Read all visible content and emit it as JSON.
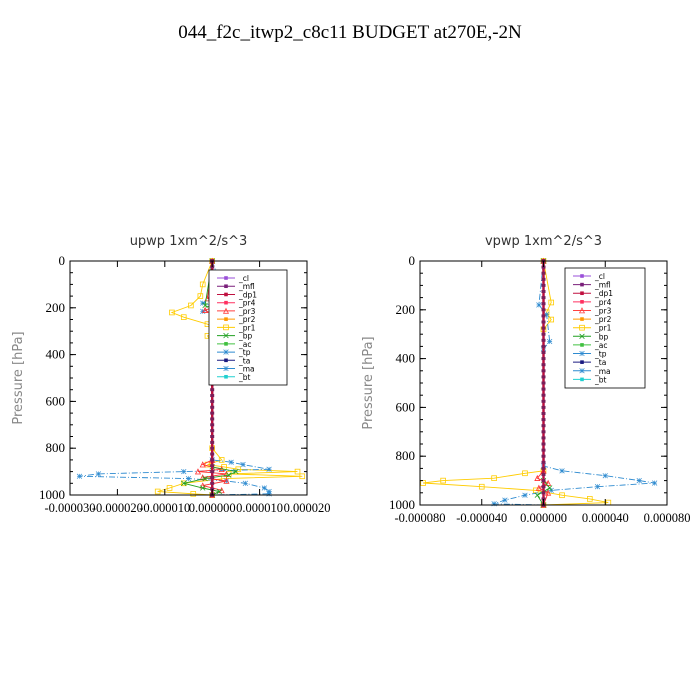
{
  "page_title": "044_f2c_itwp2_c8c11  BUDGET at270E,-2N",
  "chart_data": [
    {
      "type": "line",
      "title": "upwp  1xm^2/s^3",
      "ylabel": "Pressure [hPa]",
      "xlim": [
        -3e-05,
        2e-05
      ],
      "ylim": [
        1000,
        0
      ],
      "x_tick_labels": [
        "-0.000030",
        "-0.000020",
        "-0.000010",
        "0.000000",
        "0.000010",
        "0.000020"
      ],
      "x_ticks": [
        -3e-05,
        -2e-05,
        -1e-05,
        0,
        1e-05,
        2e-05
      ],
      "y_ticks": [
        0,
        200,
        400,
        600,
        800,
        1000
      ],
      "y_tick_labels": [
        "0",
        "200",
        "400",
        "600",
        "800",
        "1000"
      ],
      "legend_position": "upper-right",
      "legend": [
        "_cl",
        "_mfl",
        "_dp1",
        "_pr4",
        "_pr3",
        "_pr2",
        "_pr1",
        "_bp",
        "_ac",
        "_tp",
        "_ta",
        "_ma",
        "_bt"
      ],
      "series": [
        {
          "name": "_pr1",
          "color": "#ffcc00",
          "points": [
            [
              0,
              0
            ],
            [
              -2e-06,
              100
            ],
            [
              -2.5e-06,
              150
            ],
            [
              -4.5e-06,
              190
            ],
            [
              -8.5e-06,
              220
            ],
            [
              -6e-06,
              240
            ],
            [
              -1e-06,
              270
            ],
            [
              2e-06,
              300
            ],
            [
              -1e-06,
              320
            ],
            [
              0,
              350
            ],
            [
              0,
              800
            ],
            [
              2e-06,
              850
            ],
            [
              -1e-06,
              870
            ],
            [
              2.5e-06,
              880
            ],
            [
              5.5e-06,
              890
            ],
            [
              1.8e-05,
              900
            ],
            [
              3.5e-06,
              910
            ],
            [
              1.9e-05,
              920
            ],
            [
              2.5e-06,
              930
            ],
            [
              -6e-06,
              950
            ],
            [
              -9e-06,
              970
            ],
            [
              -1.15e-05,
              985
            ],
            [
              -4e-06,
              995
            ],
            [
              0,
              1000
            ]
          ]
        },
        {
          "name": "_ma",
          "color": "#2e8bd0",
          "points": [
            [
              0,
              0
            ],
            [
              2.5e-06,
              140
            ],
            [
              -2e-06,
              180
            ],
            [
              1.5e-06,
              200
            ],
            [
              -2e-06,
              215
            ],
            [
              4.5e-06,
              230
            ],
            [
              0,
              260
            ],
            [
              0,
              850
            ],
            [
              4e-06,
              860
            ],
            [
              6.5e-06,
              870
            ],
            [
              1.2e-05,
              890
            ],
            [
              -6e-06,
              900
            ],
            [
              -2.4e-05,
              910
            ],
            [
              -2.8e-05,
              920
            ],
            [
              -5e-06,
              930
            ],
            [
              3e-06,
              940
            ],
            [
              7e-06,
              950
            ],
            [
              1.1e-05,
              970
            ],
            [
              1.2e-05,
              985
            ],
            [
              1.2e-05,
              995
            ],
            [
              0,
              1000
            ]
          ]
        },
        {
          "name": "_pr3",
          "color": "#ff3030",
          "points": [
            [
              0,
              0
            ],
            [
              -1e-06,
              160
            ],
            [
              1.5e-06,
              190
            ],
            [
              -1.5e-06,
              210
            ],
            [
              1e-06,
              240
            ],
            [
              0,
              260
            ],
            [
              0,
              850
            ],
            [
              -2e-06,
              870
            ],
            [
              2e-06,
              890
            ],
            [
              -3e-06,
              900
            ],
            [
              3e-06,
              910
            ],
            [
              -2e-06,
              925
            ],
            [
              3e-06,
              940
            ],
            [
              -2e-06,
              960
            ],
            [
              2e-06,
              980
            ],
            [
              0,
              1000
            ]
          ]
        },
        {
          "name": "_bp",
          "color": "#20a020",
          "points": [
            [
              0,
              0
            ],
            [
              -1.5e-06,
              190
            ],
            [
              1e-06,
              210
            ],
            [
              0,
              230
            ],
            [
              0,
              880
            ],
            [
              5e-06,
              900
            ],
            [
              3.5e-06,
              915
            ],
            [
              -1.5e-06,
              930
            ],
            [
              -6e-06,
              950
            ],
            [
              -2e-06,
              970
            ],
            [
              1.5e-06,
              985
            ],
            [
              0,
              1000
            ]
          ]
        },
        {
          "name": "_cl",
          "color": "#7a3fd0",
          "points": [
            [
              0,
              0
            ],
            [
              0,
              1000
            ]
          ]
        },
        {
          "name": "_mfl",
          "color": "#7a1f5a",
          "points": [
            [
              0,
              0
            ],
            [
              0,
              1000
            ]
          ]
        },
        {
          "name": "_dp1",
          "color": "#c0103a",
          "points": [
            [
              0,
              0
            ],
            [
              0,
              1000
            ]
          ]
        }
      ]
    },
    {
      "type": "line",
      "title": "vpwp  1xm^2/s^3",
      "ylabel": "Pressure [hPa]",
      "xlim": [
        -8e-05,
        8e-05
      ],
      "ylim": [
        1000,
        0
      ],
      "x_tick_labels": [
        "-0.000080",
        "-0.000040",
        "0.000000",
        "0.000040",
        "0.000080"
      ],
      "x_ticks": [
        -8e-05,
        -4e-05,
        0,
        4e-05,
        8e-05
      ],
      "y_ticks": [
        0,
        200,
        400,
        600,
        800,
        1000
      ],
      "y_tick_labels": [
        "0",
        "200",
        "400",
        "600",
        "800",
        "1000"
      ],
      "legend_position": "upper-right",
      "legend": [
        "_cl",
        "_mfl",
        "_dp1",
        "_pr4",
        "_pr3",
        "_pr2",
        "_pr1",
        "_bp",
        "_ac",
        "_tp",
        "_ta",
        "_ma",
        "_bt"
      ],
      "series": [
        {
          "name": "_pr1",
          "color": "#ffcc00",
          "points": [
            [
              0,
              0
            ],
            [
              5e-06,
              170
            ],
            [
              2e-06,
              210
            ],
            [
              5e-06,
              240
            ],
            [
              0,
              280
            ],
            [
              0,
              860
            ],
            [
              -1.2e-05,
              870
            ],
            [
              -3.2e-05,
              890
            ],
            [
              -6.5e-05,
              900
            ],
            [
              -7.8e-05,
              910
            ],
            [
              -4e-05,
              925
            ],
            [
              -5e-06,
              940
            ],
            [
              1.2e-05,
              960
            ],
            [
              3e-05,
              975
            ],
            [
              4.2e-05,
              990
            ],
            [
              0,
              1000
            ]
          ]
        },
        {
          "name": "_ma",
          "color": "#2e8bd0",
          "points": [
            [
              0,
              0
            ],
            [
              -3e-06,
              180
            ],
            [
              2e-06,
              220
            ],
            [
              4e-06,
              330
            ],
            [
              0,
              360
            ],
            [
              0,
              840
            ],
            [
              1.2e-05,
              860
            ],
            [
              4e-05,
              880
            ],
            [
              6.2e-05,
              900
            ],
            [
              7.2e-05,
              910
            ],
            [
              3.5e-05,
              925
            ],
            [
              5e-06,
              940
            ],
            [
              -1.2e-05,
              960
            ],
            [
              -2.5e-05,
              980
            ],
            [
              -3.2e-05,
              995
            ],
            [
              0,
              1000
            ]
          ]
        },
        {
          "name": "_pr3",
          "color": "#ff3030",
          "points": [
            [
              0,
              0
            ],
            [
              0,
              860
            ],
            [
              -4e-06,
              890
            ],
            [
              3e-06,
              910
            ],
            [
              -3e-06,
              930
            ],
            [
              3e-06,
              950
            ],
            [
              0,
              1000
            ]
          ]
        },
        {
          "name": "_bp",
          "color": "#20a020",
          "points": [
            [
              0,
              0
            ],
            [
              0,
              900
            ],
            [
              4e-06,
              930
            ],
            [
              -4e-06,
              960
            ],
            [
              0,
              1000
            ]
          ]
        },
        {
          "name": "_cl",
          "color": "#7a3fd0",
          "points": [
            [
              0,
              0
            ],
            [
              0,
              1000
            ]
          ]
        },
        {
          "name": "_mfl",
          "color": "#7a1f5a",
          "points": [
            [
              0,
              0
            ],
            [
              0,
              1000
            ]
          ]
        },
        {
          "name": "_dp1",
          "color": "#c0103a",
          "points": [
            [
              0,
              0
            ],
            [
              0,
              1000
            ]
          ]
        }
      ]
    }
  ],
  "legend_colors": {
    "_cl": "#9a4fd8",
    "_mfl": "#7a1f7a",
    "_dp1": "#c01040",
    "_pr4": "#ff3060",
    "_pr3": "#ff4040",
    "_pr2": "#ff9900",
    "_pr1": "#ffcc00",
    "_bp": "#20a020",
    "_ac": "#40c040",
    "_tp": "#2e8bd0",
    "_ta": "#1a1a80",
    "_ma": "#2e8bd0",
    "_bt": "#20d0d0"
  }
}
